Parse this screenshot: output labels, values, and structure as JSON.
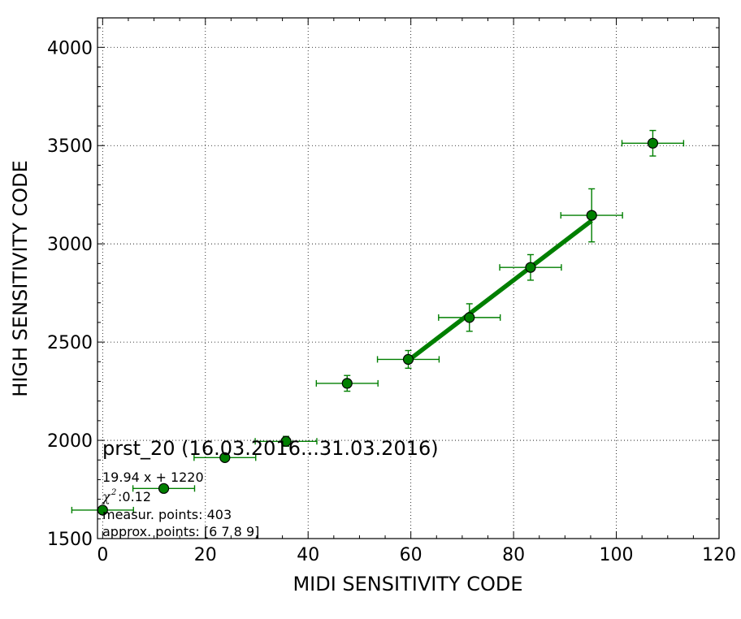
{
  "chart_data": {
    "type": "scatter",
    "xlabel": "MIDI SENSITIVITY CODE",
    "ylabel": "HIGH SENSITIVITY CODE",
    "xlim": [
      -1,
      120
    ],
    "ylim": [
      1500,
      4150
    ],
    "x_ticks": [
      0,
      20,
      40,
      60,
      80,
      100,
      120
    ],
    "y_ticks": [
      1500,
      2000,
      2500,
      3000,
      3500,
      4000
    ],
    "x_minor_step": 5,
    "y_minor_step": 100,
    "grid": true,
    "color": "#007f00",
    "points": [
      {
        "x": 0,
        "y": 1645,
        "xerr": 6,
        "yerr": 0
      },
      {
        "x": 11.9,
        "y": 1755,
        "xerr": 6,
        "yerr": 0
      },
      {
        "x": 23.8,
        "y": 1912,
        "xerr": 6,
        "yerr": 0
      },
      {
        "x": 35.7,
        "y": 1995,
        "xerr": 6,
        "yerr": 25
      },
      {
        "x": 47.6,
        "y": 2290,
        "xerr": 6,
        "yerr": 40
      },
      {
        "x": 59.5,
        "y": 2412,
        "xerr": 6,
        "yerr": 45
      },
      {
        "x": 71.4,
        "y": 2625,
        "xerr": 6,
        "yerr": 70
      },
      {
        "x": 83.3,
        "y": 2880,
        "xerr": 6,
        "yerr": 65
      },
      {
        "x": 95.2,
        "y": 3145,
        "xerr": 6,
        "yerr": 135
      },
      {
        "x": 107.1,
        "y": 3512,
        "xerr": 6,
        "yerr": 65
      }
    ],
    "fit_line": {
      "slope": 19.94,
      "intercept": 1220,
      "x_range": [
        59.5,
        95.2
      ]
    },
    "annotations": {
      "title": "prst_20 (16.03.2016...31.03.2016)",
      "equation": "19.94 x + 1220",
      "chi_symbol": "χ",
      "chi_sup": "2",
      "chi_value": " :0.12",
      "measur_points": "measur. points: 403",
      "approx_points": "approx. points: [6 7 8 9]"
    }
  }
}
